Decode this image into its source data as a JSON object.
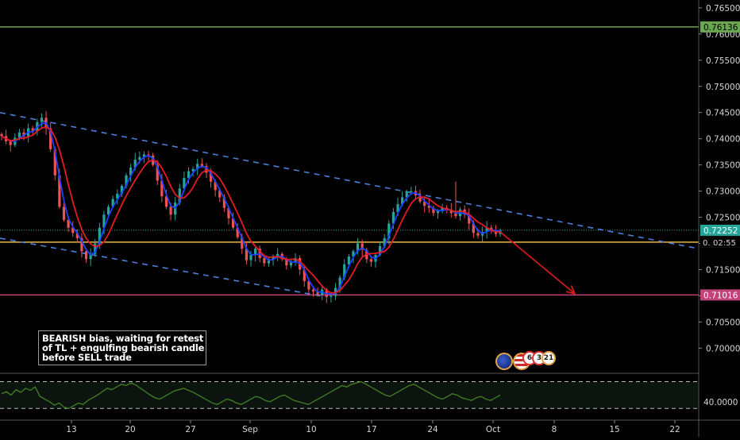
{
  "annotation": {
    "lines": [
      "BEARISH bias, waiting for retest",
      "of TL + engulfing bearish candle",
      "before SELL trade"
    ]
  },
  "events": {
    "badges": [
      "6",
      "3",
      "21"
    ]
  },
  "colors": {
    "background": "#000000",
    "up_candle": "#26a69a",
    "down_candle": "#ef5350",
    "ma_red": "#e51c23",
    "ma_blue": "#1e40ff",
    "trendline": "#4a7fd8",
    "resistance": "#6aa84f",
    "support": "#c2437a",
    "current": "#e8b84a",
    "arrow": "#d11a1a",
    "rsi_line": "#3f7a1f"
  },
  "chart_data": {
    "type": "candlestick",
    "price_axis": {
      "ylim": [
        0.6955,
        0.7665
      ],
      "ticks": [
        "0.76500",
        "0.76000",
        "0.75500",
        "0.75000",
        "0.74500",
        "0.74000",
        "0.73500",
        "0.73000",
        "0.72500",
        "0.72000",
        "0.71500",
        "0.71000",
        "0.70500",
        "0.70000"
      ],
      "tick_values": [
        0.765,
        0.76,
        0.755,
        0.75,
        0.745,
        0.74,
        0.735,
        0.73,
        0.725,
        0.72,
        0.715,
        0.71,
        0.705,
        0.7
      ]
    },
    "x_axis": {
      "labels": [
        "13",
        "20",
        "27",
        "Sep",
        "10",
        "17",
        "24",
        "Oct",
        "8",
        "15",
        "22"
      ]
    },
    "price_labels": [
      {
        "text": "0.76136",
        "value": 0.76136,
        "color": "#6aa84f",
        "text_color": "#000"
      },
      {
        "text": "0.72252",
        "value": 0.72252,
        "color": "#26a69a",
        "text_color": "#fff"
      },
      {
        "text": "0.72024",
        "value": 0.72024,
        "color": "#e8b84a",
        "text_color": "#000"
      },
      {
        "text": "0.71016",
        "value": 0.71016,
        "color": "#c2437a",
        "text_color": "#fff"
      }
    ],
    "countdown": {
      "text": "02:55",
      "prefix": "0."
    },
    "horizontal_lines": [
      {
        "name": "resistance",
        "value": 0.76136,
        "style": "solid",
        "color": "#6aa84f"
      },
      {
        "name": "current",
        "value": 0.72024,
        "style": "solid",
        "color": "#e8b84a"
      },
      {
        "name": "support",
        "value": 0.71016,
        "style": "solid",
        "color": "#c2437a"
      },
      {
        "name": "last-price",
        "value": 0.72252,
        "style": "dotted",
        "color": "#26a69a"
      }
    ],
    "close_series": [
      0.7405,
      0.7395,
      0.7388,
      0.7402,
      0.7412,
      0.7405,
      0.742,
      0.7415,
      0.7432,
      0.744,
      0.742,
      0.738,
      0.733,
      0.727,
      0.7245,
      0.723,
      0.722,
      0.721,
      0.7185,
      0.717,
      0.718,
      0.72,
      0.723,
      0.7255,
      0.727,
      0.7285,
      0.7295,
      0.731,
      0.733,
      0.7345,
      0.736,
      0.7365,
      0.737,
      0.7368,
      0.735,
      0.732,
      0.729,
      0.727,
      0.7255,
      0.7278,
      0.7305,
      0.7325,
      0.7338,
      0.7342,
      0.7352,
      0.7348,
      0.7335,
      0.7318,
      0.7302,
      0.7288,
      0.7268,
      0.7248,
      0.723,
      0.7212,
      0.719,
      0.7168,
      0.7178,
      0.719,
      0.7172,
      0.7162,
      0.717,
      0.7175,
      0.718,
      0.717,
      0.7158,
      0.7165,
      0.7172,
      0.715,
      0.7128,
      0.7112,
      0.7108,
      0.7102,
      0.7112,
      0.7098,
      0.71,
      0.7115,
      0.7135,
      0.716,
      0.7175,
      0.7185,
      0.72,
      0.7188,
      0.717,
      0.7165,
      0.7178,
      0.7195,
      0.721,
      0.7238,
      0.726,
      0.7275,
      0.7288,
      0.7298,
      0.73,
      0.7292,
      0.728,
      0.7272,
      0.7268,
      0.7258,
      0.7262,
      0.7268,
      0.7265,
      0.7258,
      0.7252,
      0.7265,
      0.7255,
      0.7238,
      0.722,
      0.7215,
      0.7222,
      0.723,
      0.7226,
      0.7218,
      0.7225
    ],
    "rsi_axis": {
      "ticks": [
        "40.0000"
      ],
      "levels": [
        70,
        30
      ]
    },
    "rsi_series": [
      52,
      55,
      50,
      58,
      54,
      60,
      57,
      62,
      48,
      44,
      40,
      35,
      38,
      32,
      30,
      34,
      38,
      36,
      42,
      46,
      50,
      55,
      60,
      58,
      62,
      66,
      64,
      68,
      65,
      60,
      55,
      50,
      46,
      44,
      48,
      52,
      56,
      58,
      60,
      57,
      54,
      50,
      46,
      42,
      38,
      36,
      40,
      44,
      42,
      38,
      36,
      40,
      44,
      48,
      46,
      42,
      40,
      44,
      48,
      50,
      46,
      42,
      40,
      38,
      36,
      40,
      44,
      48,
      52,
      56,
      60,
      64,
      62,
      66,
      68,
      70,
      66,
      62,
      58,
      54,
      50,
      48,
      52,
      56,
      60,
      64,
      66,
      62,
      58,
      54,
      50,
      46,
      44,
      48,
      52,
      50,
      46,
      44,
      42,
      46,
      48,
      44,
      42,
      46,
      50
    ],
    "annotations": [
      "BEARISH bias, waiting for retest",
      "of TL + engulfing bearish candle",
      "before SELL trade"
    ]
  }
}
